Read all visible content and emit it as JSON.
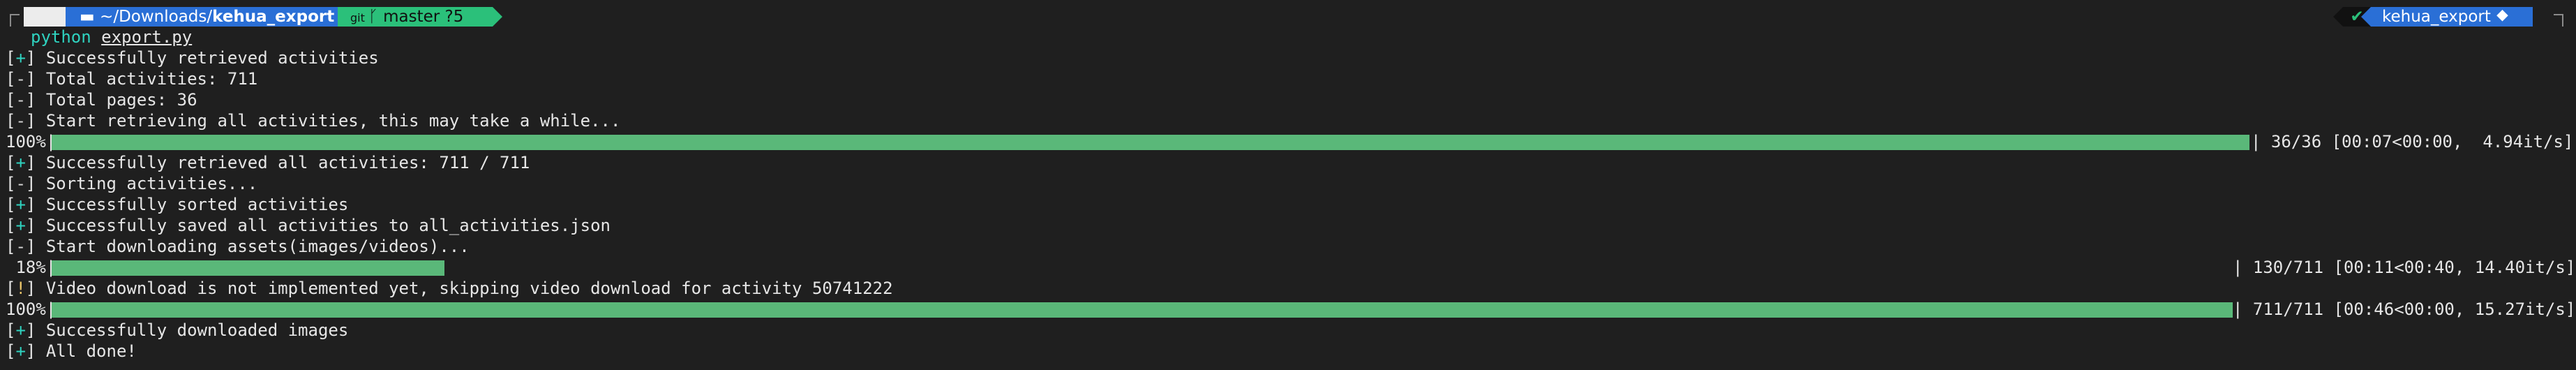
{
  "prompt": {
    "apple_icon": "apple-logo",
    "folder_icon": "folder-icon",
    "path_prefix": "~/Downloads/",
    "path_current": "kehua_export",
    "git_icon": "git-icon",
    "branch_icon": "branch-icon",
    "branch": "master ?5",
    "check_mark": "✔",
    "env_name": "kehua_export",
    "python_icon": "python-icon",
    "colors": {
      "path": "#2a6fd6",
      "git": "#2bc07a",
      "apple": "#ececec",
      "accent": "#2fd3c0"
    }
  },
  "command": {
    "program": "python",
    "args": "export.py"
  },
  "log": {
    "l1": {
      "tag": "+",
      "text": "Successfully retrieved activities"
    },
    "l2": {
      "tag": "-",
      "text": "Total activities: 711"
    },
    "l3": {
      "tag": "-",
      "text": "Total pages: 36"
    },
    "l4": {
      "tag": "-",
      "text": "Start retrieving all activities, this may take a while..."
    },
    "l5": {
      "tag": "+",
      "text": "Successfully retrieved all activities: 711 / 711"
    },
    "l6": {
      "tag": "-",
      "text": "Sorting activities..."
    },
    "l7": {
      "tag": "+",
      "text": "Successfully sorted activities"
    },
    "l8": {
      "tag": "+",
      "text": "Successfully saved all activities to all_activities.json"
    },
    "l9": {
      "tag": "-",
      "text": "Start downloading assets(images/videos)..."
    },
    "l10": {
      "tag": "!",
      "text": "Video download is not implemented yet, skipping video download for activity 50741222"
    },
    "l11": {
      "tag": "+",
      "text": "Successfully downloaded images"
    },
    "l12": {
      "tag": "+",
      "text": "All done!"
    }
  },
  "progress": {
    "p1": {
      "percent_label": "100%|",
      "fraction": 1.0,
      "stats": "| 36/36 [00:07<00:00,  4.94it/s]"
    },
    "p2": {
      "percent_label": " 18%|",
      "fraction": 0.18,
      "stats": "| 130/711 [00:11<00:40, 14.40it/s]"
    },
    "p3": {
      "percent_label": "100%|",
      "fraction": 1.0,
      "stats": "| 711/711 [00:46<00:00, 15.27it/s]"
    },
    "bar_color": "#5ab879"
  }
}
